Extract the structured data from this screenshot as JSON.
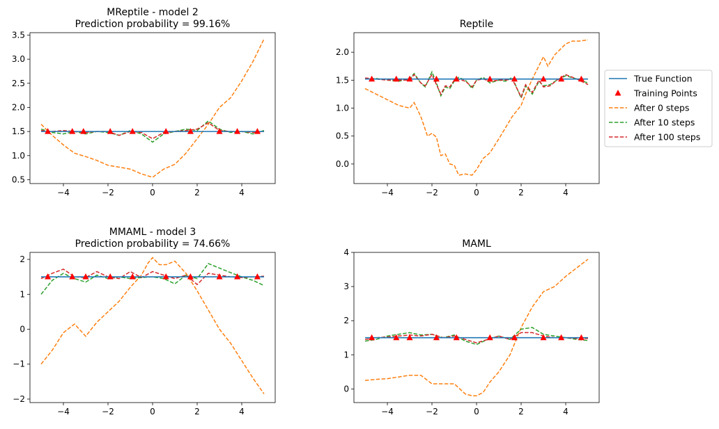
{
  "legend": {
    "placement": "right of top-right subplot",
    "entries": [
      {
        "label": "True Function",
        "color": "#1f77b4",
        "style": "solid"
      },
      {
        "label": "Training Points",
        "color": "#ff0000",
        "style": "marker-triangle"
      },
      {
        "label": "After 0 steps",
        "color": "#ff7f0e",
        "style": "dashed"
      },
      {
        "label": "After 10 steps",
        "color": "#2ca02c",
        "style": "dashed"
      },
      {
        "label": "After 100 steps",
        "color": "#d62728",
        "style": "dashed"
      }
    ]
  },
  "chart_data": [
    {
      "type": "line",
      "title": "MReptile - model 2",
      "subtitle": "Prediction probability = 99.16%",
      "xlim": [
        -5.5,
        5.5
      ],
      "ylim": [
        0.42,
        3.55
      ],
      "xticks": [
        -4,
        -2,
        0,
        2,
        4
      ],
      "yticks": [
        0.5,
        1.0,
        1.5,
        2.0,
        2.5,
        3.0,
        3.5
      ],
      "ytick_labels": [
        "0.5",
        "1.0",
        "1.5",
        "2.0",
        "2.5",
        "3.0",
        "3.5"
      ],
      "true_function": 1.5,
      "training_points": {
        "x": [
          -4.7,
          -3.6,
          -3.1,
          -1.9,
          -0.9,
          0.6,
          1.7,
          3.0,
          3.8,
          4.7
        ],
        "y": 1.5
      },
      "series": [
        {
          "name": "After 0 steps",
          "x": [
            -5,
            -4.5,
            -4,
            -3.5,
            -3,
            -2.5,
            -2,
            -1.5,
            -1,
            -0.5,
            0,
            0.5,
            1,
            1.5,
            2,
            2.5,
            3,
            3.5,
            4,
            4.5,
            5
          ],
          "y": [
            1.65,
            1.42,
            1.22,
            1.05,
            0.98,
            0.9,
            0.8,
            0.76,
            0.72,
            0.62,
            0.55,
            0.72,
            0.82,
            1.05,
            1.35,
            1.65,
            2.0,
            2.2,
            2.55,
            2.95,
            3.42
          ]
        },
        {
          "name": "After 10 steps",
          "x": [
            -5,
            -4.5,
            -4,
            -3.5,
            -3,
            -2.5,
            -2,
            -1.5,
            -1,
            -0.5,
            0,
            0.5,
            1,
            1.5,
            2,
            2.5,
            3,
            3.5,
            4,
            4.5,
            5
          ],
          "y": [
            1.55,
            1.48,
            1.45,
            1.5,
            1.45,
            1.5,
            1.48,
            1.42,
            1.52,
            1.45,
            1.28,
            1.45,
            1.5,
            1.55,
            1.52,
            1.72,
            1.55,
            1.48,
            1.5,
            1.45,
            1.52
          ]
        },
        {
          "name": "After 100 steps",
          "x": [
            -5,
            -4.5,
            -4,
            -3.5,
            -3,
            -2.5,
            -2,
            -1.5,
            -1,
            -0.5,
            0,
            0.5,
            1,
            1.5,
            2,
            2.5,
            3,
            3.5,
            4,
            4.5,
            5
          ],
          "y": [
            1.52,
            1.5,
            1.52,
            1.5,
            1.48,
            1.5,
            1.5,
            1.42,
            1.5,
            1.48,
            1.35,
            1.48,
            1.5,
            1.52,
            1.55,
            1.68,
            1.52,
            1.5,
            1.5,
            1.48,
            1.5
          ]
        }
      ]
    },
    {
      "type": "line",
      "title": "Reptile",
      "subtitle": "",
      "xlim": [
        -5.5,
        5.5
      ],
      "ylim": [
        -0.35,
        2.35
      ],
      "xticks": [
        -4,
        -2,
        0,
        2,
        4
      ],
      "yticks": [
        0.0,
        0.5,
        1.0,
        1.5,
        2.0
      ],
      "ytick_labels": [
        "0.0",
        "0.5",
        "1.0",
        "1.5",
        "2.0"
      ],
      "true_function": 1.52,
      "training_points": {
        "x": [
          -4.7,
          -3.6,
          -3.0,
          -1.8,
          -0.9,
          0.6,
          1.7,
          3.0,
          3.8,
          4.7
        ],
        "y": 1.52
      },
      "series": [
        {
          "name": "After 0 steps",
          "x": [
            -5,
            -4.5,
            -4,
            -3.5,
            -3,
            -2.8,
            -2.5,
            -2.2,
            -2,
            -1.8,
            -1.6,
            -1.4,
            -1.2,
            -1,
            -0.8,
            -0.5,
            -0.2,
            0,
            0.3,
            0.6,
            1,
            1.3,
            1.6,
            2,
            2.3,
            2.6,
            3,
            3.2,
            3.5,
            4,
            4.3,
            4.6,
            5
          ],
          "y": [
            1.35,
            1.25,
            1.15,
            1.05,
            1.0,
            1.1,
            0.85,
            0.5,
            0.55,
            0.48,
            0.15,
            0.18,
            0.0,
            -0.02,
            -0.2,
            -0.18,
            -0.2,
            -0.1,
            0.1,
            0.2,
            0.45,
            0.65,
            0.85,
            1.05,
            1.35,
            1.6,
            1.92,
            1.75,
            1.95,
            2.15,
            2.2,
            2.2,
            2.22
          ]
        },
        {
          "name": "After 10 steps",
          "x": [
            -5,
            -4.5,
            -4,
            -3.5,
            -3,
            -2.8,
            -2.5,
            -2.3,
            -2,
            -1.8,
            -1.6,
            -1.4,
            -1.2,
            -1,
            -0.8,
            -0.5,
            -0.2,
            0,
            0.3,
            0.6,
            1,
            1.3,
            1.6,
            2,
            2.2,
            2.5,
            2.8,
            3,
            3.3,
            3.6,
            4,
            4.5,
            5
          ],
          "y": [
            1.52,
            1.53,
            1.5,
            1.48,
            1.52,
            1.62,
            1.45,
            1.38,
            1.65,
            1.45,
            1.22,
            1.38,
            1.35,
            1.48,
            1.55,
            1.5,
            1.35,
            1.5,
            1.55,
            1.45,
            1.5,
            1.48,
            1.55,
            1.18,
            1.4,
            1.25,
            1.48,
            1.4,
            1.42,
            1.5,
            1.58,
            1.52,
            1.45
          ]
        },
        {
          "name": "After 100 steps",
          "x": [
            -5,
            -4.5,
            -4,
            -3.5,
            -3,
            -2.8,
            -2.5,
            -2.3,
            -2,
            -1.8,
            -1.6,
            -1.4,
            -1.2,
            -1,
            -0.8,
            -0.5,
            -0.2,
            0,
            0.3,
            0.6,
            1,
            1.3,
            1.6,
            2,
            2.2,
            2.5,
            2.8,
            3,
            3.3,
            3.6,
            4,
            4.5,
            5
          ],
          "y": [
            1.54,
            1.52,
            1.5,
            1.5,
            1.5,
            1.6,
            1.45,
            1.4,
            1.6,
            1.42,
            1.25,
            1.4,
            1.38,
            1.5,
            1.52,
            1.48,
            1.38,
            1.5,
            1.52,
            1.48,
            1.5,
            1.5,
            1.52,
            1.2,
            1.42,
            1.28,
            1.5,
            1.38,
            1.4,
            1.5,
            1.6,
            1.52,
            1.42
          ]
        }
      ]
    },
    {
      "type": "line",
      "title": "MMAML - model 3",
      "subtitle": "Prediction probability = 74.66%",
      "xlim": [
        -5.5,
        5.5
      ],
      "ylim": [
        -2.1,
        2.2
      ],
      "xticks": [
        -4,
        -2,
        0,
        2,
        4
      ],
      "yticks": [
        -2,
        -1,
        0,
        1,
        2
      ],
      "ytick_labels": [
        "−2",
        "−1",
        "0",
        "1",
        "2"
      ],
      "true_function": 1.5,
      "training_points": {
        "x": [
          -4.7,
          -3.6,
          -3.0,
          -1.9,
          -0.9,
          0.6,
          1.7,
          3.0,
          3.8,
          4.7
        ],
        "y": 1.5
      },
      "series": [
        {
          "name": "After 0 steps",
          "x": [
            -5,
            -4.5,
            -4,
            -3.5,
            -3,
            -2.5,
            -2,
            -1.5,
            -1,
            -0.5,
            -0.2,
            0,
            0.3,
            0.6,
            1,
            1.5,
            2,
            2.5,
            3,
            3.5,
            4,
            4.5,
            5
          ],
          "y": [
            -1.0,
            -0.6,
            -0.1,
            0.15,
            -0.2,
            0.2,
            0.5,
            0.8,
            1.2,
            1.55,
            1.9,
            2.05,
            1.85,
            1.85,
            1.95,
            1.6,
            1.1,
            0.55,
            0.0,
            -0.4,
            -0.9,
            -1.4,
            -1.85
          ]
        },
        {
          "name": "After 10 steps",
          "x": [
            -5,
            -4.5,
            -4,
            -3.5,
            -3,
            -2.5,
            -2,
            -1.5,
            -1,
            -0.5,
            0,
            0.5,
            1,
            1.5,
            2,
            2.5,
            3,
            3.5,
            4,
            4.5,
            5
          ],
          "y": [
            1.0,
            1.4,
            1.6,
            1.45,
            1.35,
            1.55,
            1.45,
            1.5,
            1.45,
            1.48,
            1.5,
            1.45,
            1.3,
            1.55,
            1.45,
            1.88,
            1.75,
            1.62,
            1.5,
            1.4,
            1.25
          ]
        },
        {
          "name": "After 100 steps",
          "x": [
            -5,
            -4.5,
            -4,
            -3.5,
            -3,
            -2.5,
            -2,
            -1.5,
            -1,
            -0.5,
            0,
            0.5,
            1,
            1.5,
            2,
            2.5,
            3,
            3.5,
            4,
            4.5,
            5
          ],
          "y": [
            1.45,
            1.6,
            1.72,
            1.5,
            1.48,
            1.65,
            1.5,
            1.45,
            1.65,
            1.48,
            1.65,
            1.55,
            1.45,
            1.55,
            1.28,
            1.6,
            1.55,
            1.5,
            1.48,
            1.5,
            1.52
          ]
        }
      ]
    },
    {
      "type": "line",
      "title": "MAML",
      "subtitle": "",
      "xlim": [
        -5.5,
        5.5
      ],
      "ylim": [
        -0.4,
        4.0
      ],
      "xticks": [
        -4,
        -2,
        0,
        2,
        4
      ],
      "yticks": [
        0,
        1,
        2,
        3,
        4
      ],
      "ytick_labels": [
        "0",
        "1",
        "2",
        "3",
        "4"
      ],
      "true_function": 1.5,
      "training_points": {
        "x": [
          -4.7,
          -3.6,
          -3.0,
          -1.8,
          -0.9,
          0.6,
          1.7,
          3.0,
          3.8,
          4.7
        ],
        "y": 1.5
      },
      "series": [
        {
          "name": "After 0 steps",
          "x": [
            -5,
            -4.5,
            -4,
            -3.5,
            -3,
            -2.5,
            -2,
            -1.5,
            -1,
            -0.5,
            -0.2,
            0,
            0.3,
            0.6,
            1,
            1.5,
            2,
            2.5,
            3,
            3.5,
            4,
            4.5,
            5
          ],
          "y": [
            0.25,
            0.28,
            0.3,
            0.35,
            0.4,
            0.4,
            0.15,
            0.15,
            0.15,
            -0.15,
            -0.2,
            -0.2,
            -0.1,
            0.2,
            0.5,
            1.0,
            1.8,
            2.4,
            2.85,
            3.0,
            3.3,
            3.55,
            3.8
          ]
        },
        {
          "name": "After 10 steps",
          "x": [
            -5,
            -4.5,
            -4,
            -3.5,
            -3,
            -2.5,
            -2,
            -1.5,
            -1,
            -0.5,
            0,
            0.5,
            1,
            1.5,
            2,
            2.5,
            3,
            3.5,
            4,
            4.5,
            5
          ],
          "y": [
            1.4,
            1.45,
            1.55,
            1.6,
            1.65,
            1.58,
            1.6,
            1.5,
            1.58,
            1.4,
            1.3,
            1.45,
            1.55,
            1.45,
            1.75,
            1.8,
            1.6,
            1.55,
            1.5,
            1.45,
            1.42
          ]
        },
        {
          "name": "After 100 steps",
          "x": [
            -5,
            -4.5,
            -4,
            -3.5,
            -3,
            -2.5,
            -2,
            -1.5,
            -1,
            -0.5,
            0,
            0.5,
            1,
            1.5,
            2,
            2.5,
            3,
            3.5,
            4,
            4.5,
            5
          ],
          "y": [
            1.45,
            1.5,
            1.52,
            1.55,
            1.58,
            1.55,
            1.6,
            1.5,
            1.55,
            1.45,
            1.35,
            1.45,
            1.55,
            1.45,
            1.65,
            1.65,
            1.55,
            1.5,
            1.5,
            1.48,
            1.48
          ]
        }
      ]
    }
  ]
}
